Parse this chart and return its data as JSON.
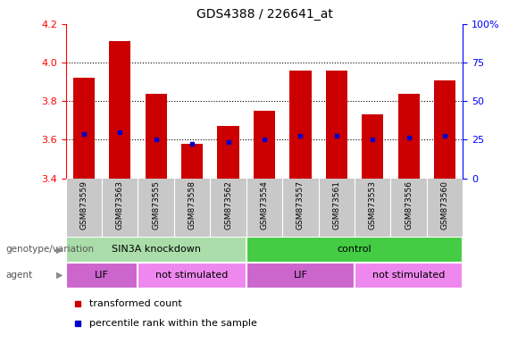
{
  "title": "GDS4388 / 226641_at",
  "samples": [
    "GSM873559",
    "GSM873563",
    "GSM873555",
    "GSM873558",
    "GSM873562",
    "GSM873554",
    "GSM873557",
    "GSM873561",
    "GSM873553",
    "GSM873556",
    "GSM873560"
  ],
  "red_values": [
    3.92,
    4.11,
    3.84,
    3.58,
    3.67,
    3.75,
    3.96,
    3.96,
    3.73,
    3.84,
    3.91
  ],
  "blue_values": [
    3.63,
    3.64,
    3.6,
    3.58,
    3.59,
    3.6,
    3.62,
    3.62,
    3.6,
    3.61,
    3.62
  ],
  "ylim_left": [
    3.4,
    4.2
  ],
  "ylim_right": [
    0,
    100
  ],
  "yticks_left": [
    3.4,
    3.6,
    3.8,
    4.0,
    4.2
  ],
  "yticks_right": [
    0,
    25,
    50,
    75,
    100
  ],
  "ytick_labels_right": [
    "0",
    "25",
    "50",
    "75",
    "100%"
  ],
  "bar_bottom": 3.4,
  "groups": [
    {
      "label": "SIN3A knockdown",
      "start": 0,
      "end": 5,
      "color": "#aaddaa"
    },
    {
      "label": "control",
      "start": 5,
      "end": 11,
      "color": "#44cc44"
    }
  ],
  "agents": [
    {
      "label": "LIF",
      "start": 0,
      "end": 2,
      "color": "#cc66cc"
    },
    {
      "label": "not stimulated",
      "start": 2,
      "end": 5,
      "color": "#ee88ee"
    },
    {
      "label": "LIF",
      "start": 5,
      "end": 8,
      "color": "#cc66cc"
    },
    {
      "label": "not stimulated",
      "start": 8,
      "end": 11,
      "color": "#ee88ee"
    }
  ],
  "legend_items": [
    {
      "color": "#CC0000",
      "label": "transformed count"
    },
    {
      "color": "#0000CC",
      "label": "percentile rank within the sample"
    }
  ],
  "red_color": "#CC0000",
  "blue_color": "#0000CC",
  "bar_width": 0.6,
  "genotype_label": "genotype/variation",
  "agent_label": "agent",
  "gray_bg": "#C8C8C8",
  "grid_lines": [
    3.6,
    3.8,
    4.0
  ]
}
